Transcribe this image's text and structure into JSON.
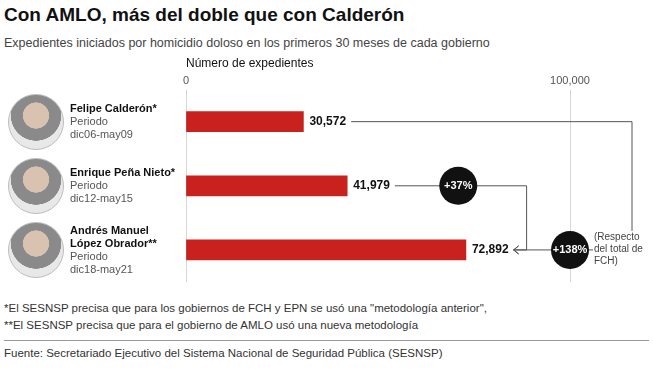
{
  "chart_data": {
    "type": "bar",
    "orientation": "horizontal",
    "title": "Con AMLO, más del doble que con Calderón",
    "subtitle": "Expedientes iniciados por homicidio doloso en los primeros 30 meses de cada gobierno",
    "x_label": "Número de expedientes",
    "categories": [
      "Felipe Calderón*",
      "Enrique Peña Nieto*",
      "Andrés Manuel\nLópez Obrador**"
    ],
    "period_label": "Periodo",
    "periods": [
      "dic06-may09",
      "dic12-may15",
      "dic18-may21"
    ],
    "values": [
      30572,
      41979,
      72892
    ],
    "value_labels": [
      "30,572",
      "41,979",
      "72,892"
    ],
    "color": "#c8211e",
    "xlim": [
      0,
      100000
    ],
    "xticks": [
      0,
      {
        "value": 100000,
        "label": "100,000"
      }
    ],
    "grid": true,
    "data_labels": true,
    "annotations": [
      {
        "text": "+37%"
      },
      {
        "text": "+138%",
        "note": "(Respecto del total de FCH)"
      }
    ],
    "footnotes": [
      "*El SESNSP precisa que para los gobiernos de FCH y EPN se usó una \"metodología anterior\",",
      "**El SESNSP precisa que para el gobierno de AMLO usó una nueva metodología"
    ],
    "source": "Fuente: Secretariado Ejecutivo del Sistema Nacional de Seguridad Pública (SESNSP)"
  }
}
